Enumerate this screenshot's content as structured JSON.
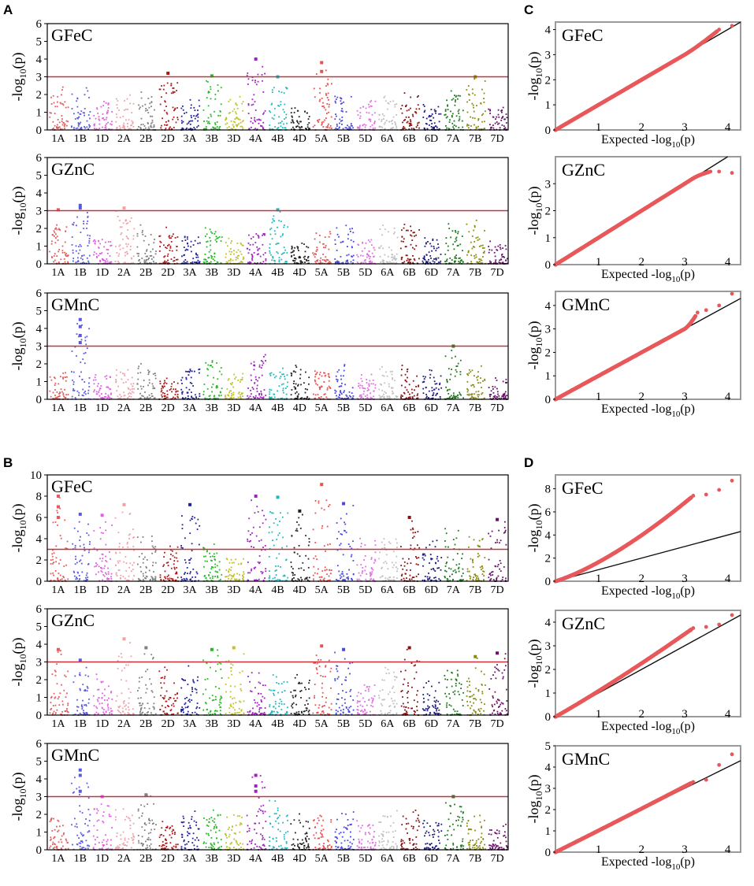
{
  "figure": {
    "panel_labels": [
      "A",
      "B",
      "C",
      "D"
    ],
    "y_axis_label": "-log",
    "y_axis_sub": "10",
    "y_axis_tail": "(p)",
    "x_axis_label_qq": "Expected -log",
    "x_axis_sub": "10",
    "x_axis_tail": "(p)"
  },
  "colors": {
    "threshold": "#c8323c",
    "qq_points": "#e8585a",
    "qq_line": "#111111",
    "frame_qq": "#9a9a9a",
    "chromosomes": [
      "#e55a5a",
      "#5a5ae0",
      "#e060e0",
      "#f0a0a8",
      "#808080",
      "#b01818",
      "#20209a",
      "#22bb22",
      "#c0c030",
      "#a020c0",
      "#20b8c0",
      "#222222",
      "#ea5050",
      "#4848e0",
      "#e070e0",
      "#c0c0c0",
      "#8a1010",
      "#1a1a80",
      "#1a7a1a",
      "#8a8a10",
      "#6a106a"
    ]
  },
  "chart_data": [
    {
      "id": "A1",
      "panel": "A",
      "type": "scatter",
      "subtype": "manhattan",
      "title": "GFeC",
      "ylim": [
        0,
        6
      ],
      "yticks": [
        0,
        1,
        2,
        3,
        4,
        5,
        6
      ],
      "threshold": 3,
      "chromosomes": [
        "1A",
        "1B",
        "1D",
        "2A",
        "2B",
        "2D",
        "3A",
        "3B",
        "3D",
        "4A",
        "4B",
        "4D",
        "5A",
        "5B",
        "5D",
        "6A",
        "6B",
        "6D",
        "7A",
        "7B",
        "7D"
      ],
      "peaks": [
        2.5,
        2.5,
        1.8,
        2.1,
        2.2,
        3.2,
        1.9,
        3.0,
        2.0,
        4.0,
        3.0,
        1.3,
        3.8,
        2.3,
        1.7,
        2.0,
        2.2,
        1.6,
        2.3,
        3.0,
        1.4
      ],
      "hits": [
        {
          "chr": "2D",
          "value": 3.2
        },
        {
          "chr": "3B",
          "value": 3.05
        },
        {
          "chr": "4A",
          "value": 4.0
        },
        {
          "chr": "4B",
          "value": 3.0
        },
        {
          "chr": "5A",
          "value": 3.8
        },
        {
          "chr": "5A",
          "value": 3.3
        },
        {
          "chr": "7B",
          "value": 3.0
        }
      ]
    },
    {
      "id": "A2",
      "panel": "A",
      "type": "scatter",
      "subtype": "manhattan",
      "title": "GZnC",
      "ylim": [
        0,
        6
      ],
      "yticks": [
        0,
        1,
        2,
        3,
        4,
        5,
        6
      ],
      "threshold": 3,
      "chromosomes": [
        "1A",
        "1B",
        "1D",
        "2A",
        "2B",
        "2D",
        "3A",
        "3B",
        "3D",
        "4A",
        "4B",
        "4D",
        "5A",
        "5B",
        "5D",
        "6A",
        "6B",
        "6D",
        "7A",
        "7B",
        "7D"
      ],
      "peaks": [
        2.4,
        3.3,
        1.6,
        3.1,
        2.2,
        2.1,
        1.9,
        2.3,
        1.5,
        2.0,
        3.0,
        1.2,
        2.1,
        2.4,
        1.5,
        2.3,
        2.5,
        1.8,
        2.3,
        2.5,
        1.3
      ],
      "hits": [
        {
          "chr": "1A",
          "value": 3.05
        },
        {
          "chr": "1B",
          "value": 3.3
        },
        {
          "chr": "1B",
          "value": 3.15
        },
        {
          "chr": "2A",
          "value": 3.15
        },
        {
          "chr": "4B",
          "value": 3.05
        }
      ]
    },
    {
      "id": "A3",
      "panel": "A",
      "type": "scatter",
      "subtype": "manhattan",
      "title": "GMnC",
      "ylim": [
        0,
        6
      ],
      "yticks": [
        0,
        1,
        2,
        3,
        4,
        5,
        6
      ],
      "threshold": 3,
      "chromosomes": [
        "1A",
        "1B",
        "1D",
        "2A",
        "2B",
        "2D",
        "3A",
        "3B",
        "3D",
        "4A",
        "4B",
        "4D",
        "5A",
        "5B",
        "5D",
        "6A",
        "6B",
        "6D",
        "7A",
        "7B",
        "7D"
      ],
      "peaks": [
        1.6,
        4.5,
        1.5,
        2.0,
        2.1,
        1.2,
        2.0,
        2.5,
        1.5,
        2.7,
        1.9,
        2.0,
        1.8,
        2.0,
        1.4,
        1.9,
        2.3,
        1.7,
        3.0,
        2.0,
        1.2
      ],
      "hits": [
        {
          "chr": "1B",
          "value": 4.5
        },
        {
          "chr": "1B",
          "value": 4.1
        },
        {
          "chr": "1B",
          "value": 3.6
        },
        {
          "chr": "1B",
          "value": 3.2
        },
        {
          "chr": "7A",
          "value": 3.0
        }
      ]
    },
    {
      "id": "B1",
      "panel": "B",
      "type": "scatter",
      "subtype": "manhattan",
      "title": "GFeC",
      "ylim": [
        0,
        10
      ],
      "yticks": [
        0,
        2,
        4,
        6,
        8,
        10
      ],
      "threshold": 3,
      "chromosomes": [
        "1A",
        "1B",
        "1D",
        "2A",
        "2B",
        "2D",
        "3A",
        "3B",
        "3D",
        "4A",
        "4B",
        "4D",
        "5A",
        "5B",
        "5D",
        "6A",
        "6B",
        "6D",
        "7A",
        "7B",
        "7D"
      ],
      "peaks": [
        8.0,
        6.3,
        6.2,
        7.2,
        5.0,
        3.5,
        7.2,
        3.5,
        2.5,
        8.0,
        7.9,
        6.6,
        9.1,
        7.3,
        4.5,
        4.7,
        6.0,
        4.0,
        5.0,
        4.7,
        5.8
      ],
      "hits": [
        {
          "chr": "1A",
          "value": 8.0
        },
        {
          "chr": "1A",
          "value": 7.0
        },
        {
          "chr": "1A",
          "value": 6.0
        },
        {
          "chr": "1B",
          "value": 6.3
        },
        {
          "chr": "1D",
          "value": 6.2
        },
        {
          "chr": "2A",
          "value": 7.2
        },
        {
          "chr": "3A",
          "value": 7.2
        },
        {
          "chr": "4A",
          "value": 8.0
        },
        {
          "chr": "4B",
          "value": 7.9
        },
        {
          "chr": "4D",
          "value": 6.6
        },
        {
          "chr": "5A",
          "value": 9.1
        },
        {
          "chr": "5B",
          "value": 7.3
        },
        {
          "chr": "6B",
          "value": 6.0
        },
        {
          "chr": "7D",
          "value": 5.8
        }
      ]
    },
    {
      "id": "B2",
      "panel": "B",
      "type": "scatter",
      "subtype": "manhattan",
      "title": "GZnC",
      "ylim": [
        0,
        6
      ],
      "yticks": [
        0,
        1,
        2,
        3,
        4,
        5,
        6
      ],
      "threshold": 3,
      "chromosomes": [
        "1A",
        "1B",
        "1D",
        "2A",
        "2B",
        "2D",
        "3A",
        "3B",
        "3D",
        "4A",
        "4B",
        "4D",
        "5A",
        "5B",
        "5D",
        "6A",
        "6B",
        "6D",
        "7A",
        "7B",
        "7D"
      ],
      "peaks": [
        3.7,
        3.1,
        2.3,
        4.3,
        3.8,
        2.7,
        2.8,
        3.7,
        3.8,
        2.5,
        2.5,
        2.3,
        3.9,
        3.7,
        2.2,
        3.1,
        3.8,
        2.0,
        3.0,
        3.3,
        3.5
      ],
      "hits": [
        {
          "chr": "1A",
          "value": 3.7
        },
        {
          "chr": "1B",
          "value": 3.1
        },
        {
          "chr": "2A",
          "value": 4.3
        },
        {
          "chr": "2B",
          "value": 3.8
        },
        {
          "chr": "3B",
          "value": 3.7
        },
        {
          "chr": "3D",
          "value": 3.8
        },
        {
          "chr": "5A",
          "value": 3.9
        },
        {
          "chr": "5B",
          "value": 3.7
        },
        {
          "chr": "6B",
          "value": 3.8
        },
        {
          "chr": "7B",
          "value": 3.3
        },
        {
          "chr": "7D",
          "value": 3.5
        }
      ]
    },
    {
      "id": "B3",
      "panel": "B",
      "type": "scatter",
      "subtype": "manhattan",
      "title": "GMnC",
      "ylim": [
        0,
        6
      ],
      "yticks": [
        0,
        1,
        2,
        3,
        4,
        5,
        6
      ],
      "threshold": 3,
      "chromosomes": [
        "1A",
        "1B",
        "1D",
        "2A",
        "2B",
        "2D",
        "3A",
        "3B",
        "3D",
        "4A",
        "4B",
        "4D",
        "5A",
        "5B",
        "5D",
        "6A",
        "6B",
        "6D",
        "7A",
        "7B",
        "7D"
      ],
      "peaks": [
        2.1,
        4.5,
        3.0,
        2.3,
        3.1,
        1.6,
        2.2,
        2.5,
        2.2,
        4.2,
        2.8,
        2.2,
        2.3,
        2.3,
        1.8,
        2.3,
        2.3,
        2.0,
        3.0,
        2.0,
        1.5
      ],
      "hits": [
        {
          "chr": "1B",
          "value": 4.5
        },
        {
          "chr": "1B",
          "value": 4.2
        },
        {
          "chr": "1B",
          "value": 3.3
        },
        {
          "chr": "1D",
          "value": 3.0
        },
        {
          "chr": "2B",
          "value": 3.1
        },
        {
          "chr": "4A",
          "value": 4.2
        },
        {
          "chr": "4A",
          "value": 3.6
        },
        {
          "chr": "4A",
          "value": 3.3
        },
        {
          "chr": "7A",
          "value": 3.0
        }
      ]
    },
    {
      "id": "C1",
      "panel": "C",
      "type": "scatter",
      "subtype": "qq",
      "title": "GFeC",
      "xlim": [
        0,
        4.3
      ],
      "ylim": [
        0,
        4.3
      ],
      "xticks": [
        1,
        2,
        3,
        4
      ],
      "yticks": [
        0,
        1,
        2,
        3,
        4
      ],
      "expected_max": 4.2,
      "observed_max": 4.1,
      "inflation_onset": 3.0,
      "inflation_power": 1.0,
      "outliers": [
        [
          3.8,
          4.0
        ],
        [
          4.1,
          4.15
        ]
      ]
    },
    {
      "id": "C2",
      "panel": "C",
      "type": "scatter",
      "subtype": "qq",
      "title": "GZnC",
      "xlim": [
        0,
        4.3
      ],
      "ylim": [
        0,
        4.0
      ],
      "xticks": [
        1,
        2,
        3,
        4
      ],
      "yticks": [
        0,
        1,
        2,
        3
      ],
      "expected_max": 4.2,
      "observed_max": 3.45,
      "inflation_onset": 3.2,
      "inflation_power": 1.0,
      "outliers": [
        [
          3.6,
          3.45
        ],
        [
          3.8,
          3.45
        ],
        [
          4.1,
          3.4
        ]
      ]
    },
    {
      "id": "C3",
      "panel": "C",
      "type": "scatter",
      "subtype": "qq",
      "title": "GMnC",
      "xlim": [
        0,
        4.3
      ],
      "ylim": [
        0,
        4.6
      ],
      "xticks": [
        1,
        2,
        3,
        4
      ],
      "yticks": [
        0,
        1,
        2,
        3,
        4
      ],
      "expected_max": 4.2,
      "observed_max": 4.5,
      "inflation_onset": 3.0,
      "inflation_power": 1.0,
      "outliers": [
        [
          3.3,
          3.7
        ],
        [
          3.5,
          3.8
        ],
        [
          3.8,
          4.0
        ],
        [
          4.1,
          4.5
        ]
      ]
    },
    {
      "id": "D1",
      "panel": "D",
      "type": "scatter",
      "subtype": "qq",
      "title": "GFeC",
      "xlim": [
        0,
        4.3
      ],
      "ylim": [
        0,
        9.2
      ],
      "xticks": [
        1,
        2,
        3,
        4
      ],
      "yticks": [
        0,
        2,
        4,
        6,
        8
      ],
      "expected_max": 4.2,
      "observed_max": 8.7,
      "inflation_onset": 0.0,
      "inflation_power": 1.0,
      "outliers": [
        [
          3.2,
          7.4
        ],
        [
          3.5,
          7.5
        ],
        [
          3.8,
          7.9
        ],
        [
          4.1,
          8.7
        ]
      ]
    },
    {
      "id": "D2",
      "panel": "D",
      "type": "scatter",
      "subtype": "qq",
      "title": "GZnC",
      "xlim": [
        0,
        4.3
      ],
      "ylim": [
        0,
        4.5
      ],
      "xticks": [
        1,
        2,
        3,
        4
      ],
      "yticks": [
        0,
        1,
        2,
        3,
        4
      ],
      "expected_max": 4.2,
      "observed_max": 4.3,
      "inflation_onset": 0.0,
      "inflation_power": 1.0,
      "outliers": [
        [
          3.2,
          3.75
        ],
        [
          3.5,
          3.8
        ],
        [
          3.8,
          3.9
        ],
        [
          4.1,
          4.3
        ]
      ]
    },
    {
      "id": "D3",
      "panel": "D",
      "type": "scatter",
      "subtype": "qq",
      "title": "GMnC",
      "xlim": [
        0,
        4.3
      ],
      "ylim": [
        0,
        5.0
      ],
      "xticks": [
        1,
        2,
        3,
        4
      ],
      "yticks": [
        0,
        1,
        2,
        3,
        4,
        5
      ],
      "expected_max": 4.2,
      "observed_max": 4.6,
      "inflation_onset": 0.0,
      "inflation_power": 1.0,
      "outliers": [
        [
          3.2,
          3.3
        ],
        [
          3.5,
          3.4
        ],
        [
          3.8,
          4.1
        ],
        [
          4.1,
          4.6
        ]
      ]
    }
  ]
}
